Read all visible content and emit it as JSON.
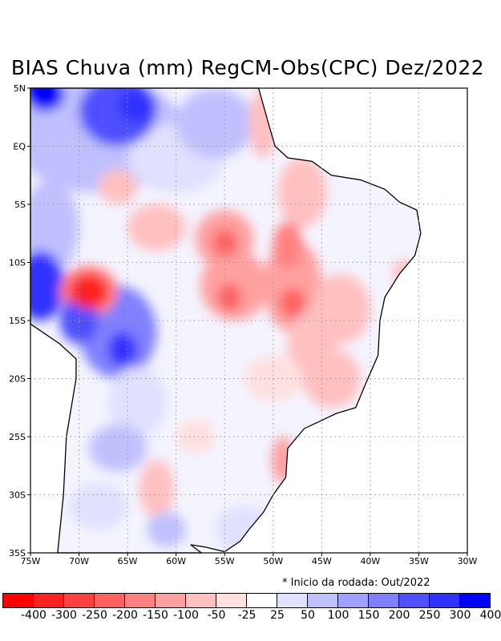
{
  "title": "BIAS Chuva (mm) RegCM-Obs(CPC) Dez/2022",
  "map": {
    "lon_range": [
      -75,
      -30
    ],
    "lat_range": [
      -35,
      5
    ],
    "lon_ticks": [
      "75W",
      "70W",
      "65W",
      "60W",
      "55W",
      "50W",
      "45W",
      "40W",
      "35W",
      "30W"
    ],
    "lat_ticks": [
      "5N",
      "EQ",
      "5S",
      "10S",
      "15S",
      "20S",
      "25S",
      "30S",
      "35S"
    ]
  },
  "note": "* Inicio da rodada: Out/2022",
  "colorbar": {
    "colors": [
      "#ff0000",
      "#ff2020",
      "#ff4040",
      "#ff6060",
      "#ff8080",
      "#ffa0a0",
      "#ffc0c0",
      "#ffe0e0",
      "#ffffff",
      "#e0e0ff",
      "#c0c0ff",
      "#a0a0ff",
      "#8080ff",
      "#5050ff",
      "#3030ff",
      "#0000ff"
    ],
    "labels": [
      "-400",
      "-300",
      "-250",
      "-200",
      "-150",
      "-100",
      "-50",
      "-25",
      "25",
      "50",
      "100",
      "150",
      "200",
      "250",
      "300",
      "400"
    ]
  }
}
